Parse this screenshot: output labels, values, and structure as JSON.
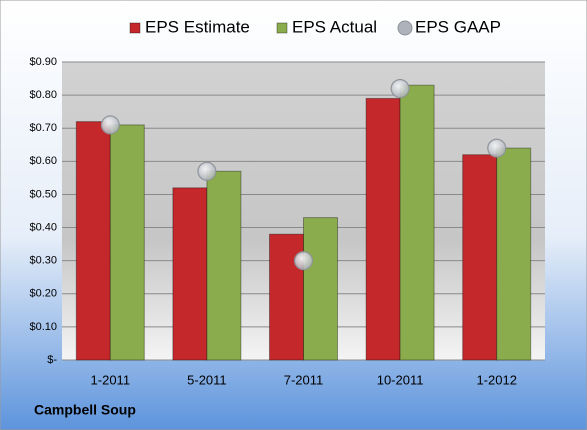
{
  "chart_data": {
    "type": "bar",
    "title": "Campbell Soup",
    "categories": [
      "1-2011",
      "5-2011",
      "7-2011",
      "10-2011",
      "1-2012"
    ],
    "series": [
      {
        "name": "EPS Estimate",
        "color": "#c4282b",
        "values": [
          0.72,
          0.52,
          0.38,
          0.79,
          0.62
        ]
      },
      {
        "name": "EPS Actual",
        "color": "#8bac4c",
        "values": [
          0.71,
          0.57,
          0.43,
          0.83,
          0.64
        ]
      },
      {
        "name": "EPS GAAP",
        "color": "#aeb3bb",
        "type": "scatter",
        "values": [
          0.71,
          0.57,
          0.3,
          0.82,
          0.64
        ]
      }
    ],
    "ylim": [
      0,
      0.9
    ],
    "yticks": [
      {
        "value": 0,
        "label": "$-"
      },
      {
        "value": 0.1,
        "label": "$0.10"
      },
      {
        "value": 0.2,
        "label": "$0.20"
      },
      {
        "value": 0.3,
        "label": "$0.30"
      },
      {
        "value": 0.4,
        "label": "$0.40"
      },
      {
        "value": 0.5,
        "label": "$0.50"
      },
      {
        "value": 0.6,
        "label": "$0.60"
      },
      {
        "value": 0.7,
        "label": "$0.70"
      },
      {
        "value": 0.8,
        "label": "$0.80"
      },
      {
        "value": 0.9,
        "label": "$0.90"
      }
    ],
    "grid": true,
    "legend": "top"
  }
}
